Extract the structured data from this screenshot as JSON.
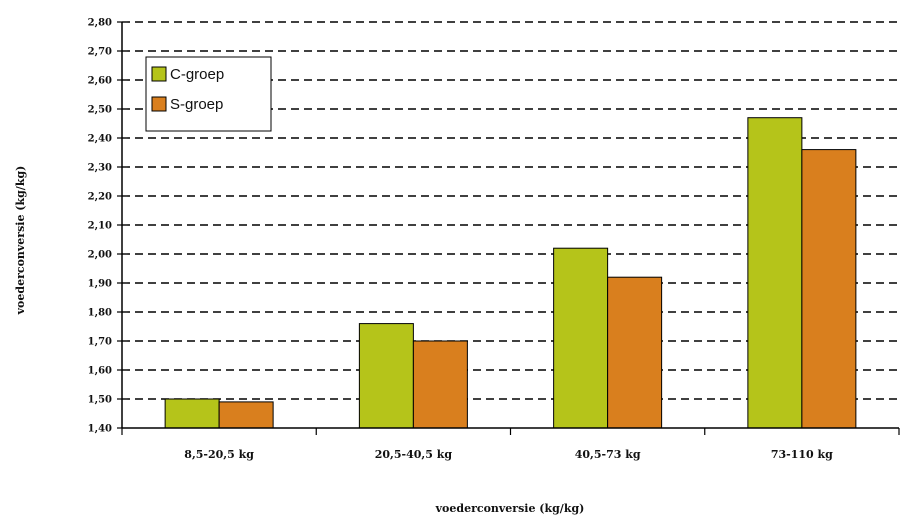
{
  "chart_data": {
    "type": "bar",
    "categories": [
      "8,5-20,5 kg",
      "20,5-40,5 kg",
      "40,5-73 kg",
      "73-110 kg"
    ],
    "series": [
      {
        "name": "C-groep",
        "values": [
          1.5,
          1.76,
          2.02,
          2.47
        ],
        "color": "#b5c41a"
      },
      {
        "name": "S-groep",
        "values": [
          1.49,
          1.7,
          1.92,
          2.36
        ],
        "color": "#d97f1e"
      }
    ],
    "ylim": [
      1.4,
      2.8
    ],
    "yticks": [
      "1,40",
      "1,50",
      "1,60",
      "1,70",
      "1,80",
      "1,90",
      "2,00",
      "2,10",
      "2,20",
      "2,30",
      "2,40",
      "2,50",
      "2,60",
      "2,70",
      "2,80"
    ],
    "ylabel": "voederconversie (kg/kg)",
    "xlabel": "voederconversie (kg/kg)",
    "grid": "dashed horizontal",
    "legend": "top-left"
  }
}
